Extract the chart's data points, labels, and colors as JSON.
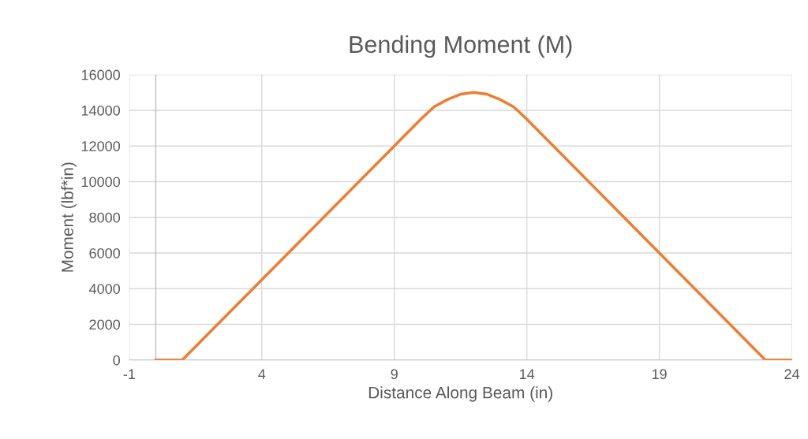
{
  "chart_data": {
    "type": "line",
    "title": "Bending Moment (M)",
    "xlabel": "Distance Along Beam (in)",
    "ylabel": "Moment (lbf*in)",
    "series": [
      {
        "color": "#ed7d31",
        "x": [
          0,
          1,
          4,
          9,
          10,
          10.5,
          11,
          11.5,
          12,
          12.5,
          13,
          13.5,
          14,
          19,
          23,
          24
        ],
        "values": [
          0,
          0,
          4500,
          12000,
          13500,
          14200,
          14600,
          14900,
          15000,
          14900,
          14600,
          14200,
          13500,
          6000,
          0,
          0
        ]
      }
    ],
    "xlim": [
      -1,
      24
    ],
    "xticks": [
      -1,
      4,
      9,
      14,
      19,
      24
    ],
    "ylim": [
      0,
      16000
    ],
    "yticks": [
      0,
      2000,
      4000,
      6000,
      8000,
      10000,
      12000,
      14000,
      16000
    ],
    "grid": true,
    "marker": "none",
    "line_style": "solid",
    "ref_lines": [
      {
        "axis": "x",
        "value": 0,
        "color": "#bfbfbf"
      }
    ]
  }
}
